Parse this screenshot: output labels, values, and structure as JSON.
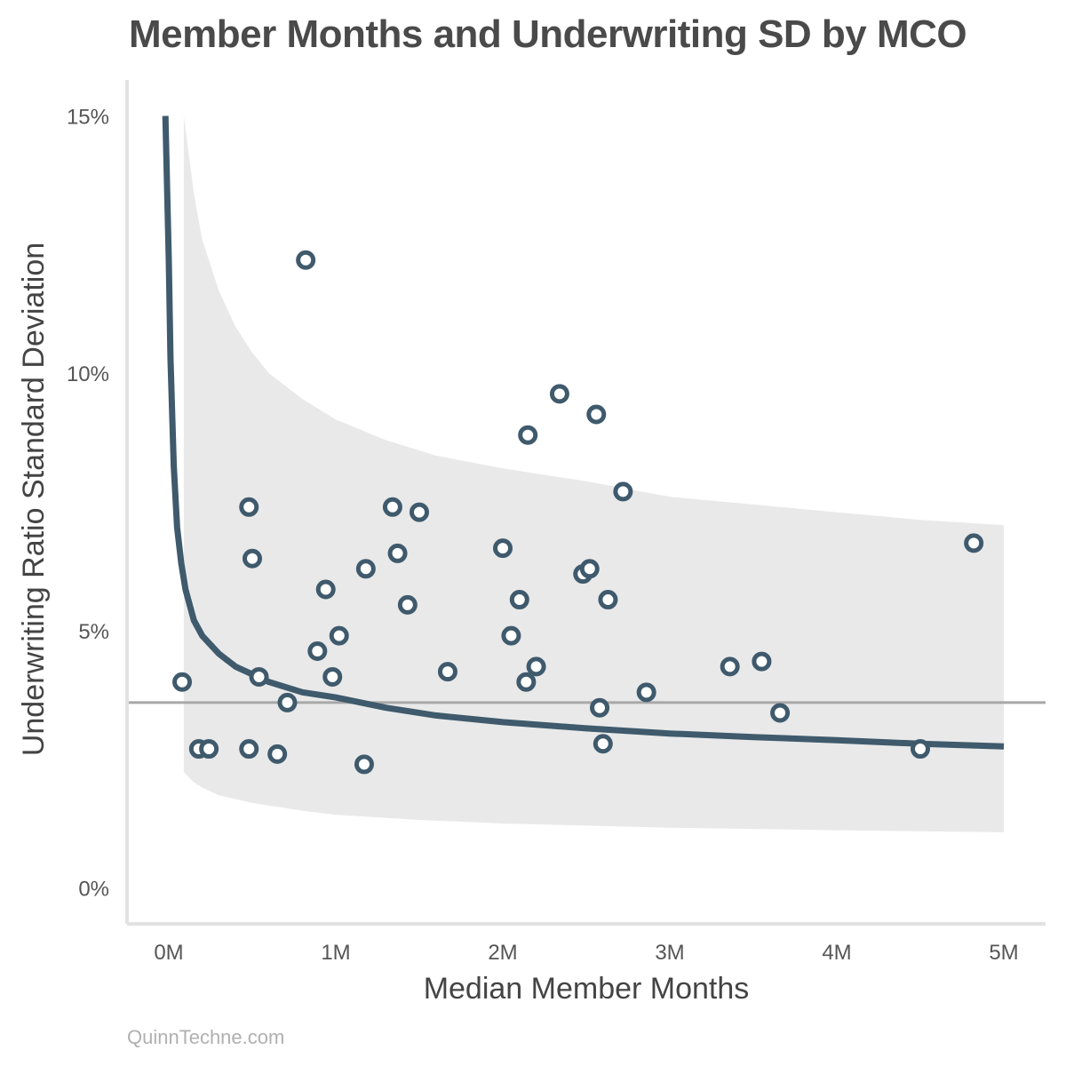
{
  "title": "Member Months and Underwriting SD by MCO",
  "footer": "QuinnTechne.com",
  "colors": {
    "series": "#3f5a6c",
    "band": "#e9e9e9",
    "reference_line": "#a8a8a8",
    "axis": "#e2e2e2",
    "marker_fill": "#ffffff"
  },
  "chart_data": {
    "type": "scatter",
    "title": "Member Months and Underwriting SD by MCO",
    "xlabel": "Median Member Months",
    "ylabel": "Underwriting Ratio Standard Deviation",
    "xlim": [
      -0.25,
      5.25
    ],
    "ylim": [
      -0.7,
      15.7
    ],
    "x_unit": "M member months",
    "y_unit": "%",
    "x_ticks": [
      {
        "value": 0,
        "label": "0M"
      },
      {
        "value": 1,
        "label": "1M"
      },
      {
        "value": 2,
        "label": "2M"
      },
      {
        "value": 3,
        "label": "3M"
      },
      {
        "value": 4,
        "label": "4M"
      },
      {
        "value": 5,
        "label": "5M"
      }
    ],
    "y_ticks": [
      {
        "value": 0,
        "label": "0%"
      },
      {
        "value": 5,
        "label": "5%"
      },
      {
        "value": 10,
        "label": "10%"
      },
      {
        "value": 15,
        "label": "15%"
      }
    ],
    "grid": false,
    "reference_line_y": 3.6,
    "fit_curve": [
      [
        -0.02,
        15.0
      ],
      [
        0.0,
        12.2
      ],
      [
        0.01,
        10.3
      ],
      [
        0.03,
        8.2
      ],
      [
        0.05,
        7.0
      ],
      [
        0.075,
        6.3
      ],
      [
        0.1,
        5.8
      ],
      [
        0.15,
        5.2
      ],
      [
        0.2,
        4.9
      ],
      [
        0.3,
        4.55
      ],
      [
        0.4,
        4.3
      ],
      [
        0.5,
        4.15
      ],
      [
        0.6,
        4.0
      ],
      [
        0.8,
        3.8
      ],
      [
        1.0,
        3.7
      ],
      [
        1.3,
        3.5
      ],
      [
        1.6,
        3.35
      ],
      [
        2.0,
        3.22
      ],
      [
        2.5,
        3.1
      ],
      [
        3.0,
        3.0
      ],
      [
        3.5,
        2.93
      ],
      [
        4.0,
        2.87
      ],
      [
        4.5,
        2.8
      ],
      [
        5.0,
        2.75
      ]
    ],
    "band_upper": [
      [
        0.09,
        15.0
      ],
      [
        0.15,
        13.5
      ],
      [
        0.2,
        12.6
      ],
      [
        0.3,
        11.6
      ],
      [
        0.4,
        10.9
      ],
      [
        0.5,
        10.4
      ],
      [
        0.6,
        10.0
      ],
      [
        0.8,
        9.5
      ],
      [
        1.0,
        9.1
      ],
      [
        1.3,
        8.7
      ],
      [
        1.6,
        8.4
      ],
      [
        2.0,
        8.15
      ],
      [
        2.5,
        7.9
      ],
      [
        3.0,
        7.6
      ],
      [
        3.5,
        7.45
      ],
      [
        4.0,
        7.3
      ],
      [
        4.5,
        7.15
      ],
      [
        5.0,
        7.05
      ]
    ],
    "band_lower": [
      [
        0.09,
        2.25
      ],
      [
        0.15,
        2.05
      ],
      [
        0.2,
        1.95
      ],
      [
        0.3,
        1.8
      ],
      [
        0.5,
        1.65
      ],
      [
        0.8,
        1.5
      ],
      [
        1.0,
        1.42
      ],
      [
        1.5,
        1.32
      ],
      [
        2.0,
        1.25
      ],
      [
        3.0,
        1.17
      ],
      [
        4.0,
        1.12
      ],
      [
        5.0,
        1.08
      ]
    ],
    "points": [
      {
        "x": 0.08,
        "y": 4.0
      },
      {
        "x": 0.18,
        "y": 2.7
      },
      {
        "x": 0.24,
        "y": 2.7
      },
      {
        "x": 0.48,
        "y": 2.7
      },
      {
        "x": 0.48,
        "y": 7.4
      },
      {
        "x": 0.5,
        "y": 6.4
      },
      {
        "x": 0.54,
        "y": 4.1
      },
      {
        "x": 0.65,
        "y": 2.6
      },
      {
        "x": 0.71,
        "y": 3.6
      },
      {
        "x": 0.82,
        "y": 12.2
      },
      {
        "x": 0.89,
        "y": 4.6
      },
      {
        "x": 0.94,
        "y": 5.8
      },
      {
        "x": 0.98,
        "y": 4.1
      },
      {
        "x": 1.02,
        "y": 4.9
      },
      {
        "x": 1.17,
        "y": 2.4
      },
      {
        "x": 1.18,
        "y": 6.2
      },
      {
        "x": 1.34,
        "y": 7.4
      },
      {
        "x": 1.37,
        "y": 6.5
      },
      {
        "x": 1.43,
        "y": 5.5
      },
      {
        "x": 1.5,
        "y": 7.3
      },
      {
        "x": 1.67,
        "y": 4.2
      },
      {
        "x": 2.0,
        "y": 6.6
      },
      {
        "x": 2.05,
        "y": 4.9
      },
      {
        "x": 2.1,
        "y": 5.6
      },
      {
        "x": 2.14,
        "y": 4.0
      },
      {
        "x": 2.15,
        "y": 8.8
      },
      {
        "x": 2.2,
        "y": 4.3
      },
      {
        "x": 2.34,
        "y": 9.6
      },
      {
        "x": 2.48,
        "y": 6.1
      },
      {
        "x": 2.52,
        "y": 6.2
      },
      {
        "x": 2.56,
        "y": 9.2
      },
      {
        "x": 2.58,
        "y": 3.5
      },
      {
        "x": 2.6,
        "y": 2.8
      },
      {
        "x": 2.63,
        "y": 5.6
      },
      {
        "x": 2.72,
        "y": 7.7
      },
      {
        "x": 2.86,
        "y": 3.8
      },
      {
        "x": 3.36,
        "y": 4.3
      },
      {
        "x": 3.55,
        "y": 4.4
      },
      {
        "x": 3.66,
        "y": 3.4
      },
      {
        "x": 4.5,
        "y": 2.7
      },
      {
        "x": 4.82,
        "y": 6.7
      }
    ]
  }
}
